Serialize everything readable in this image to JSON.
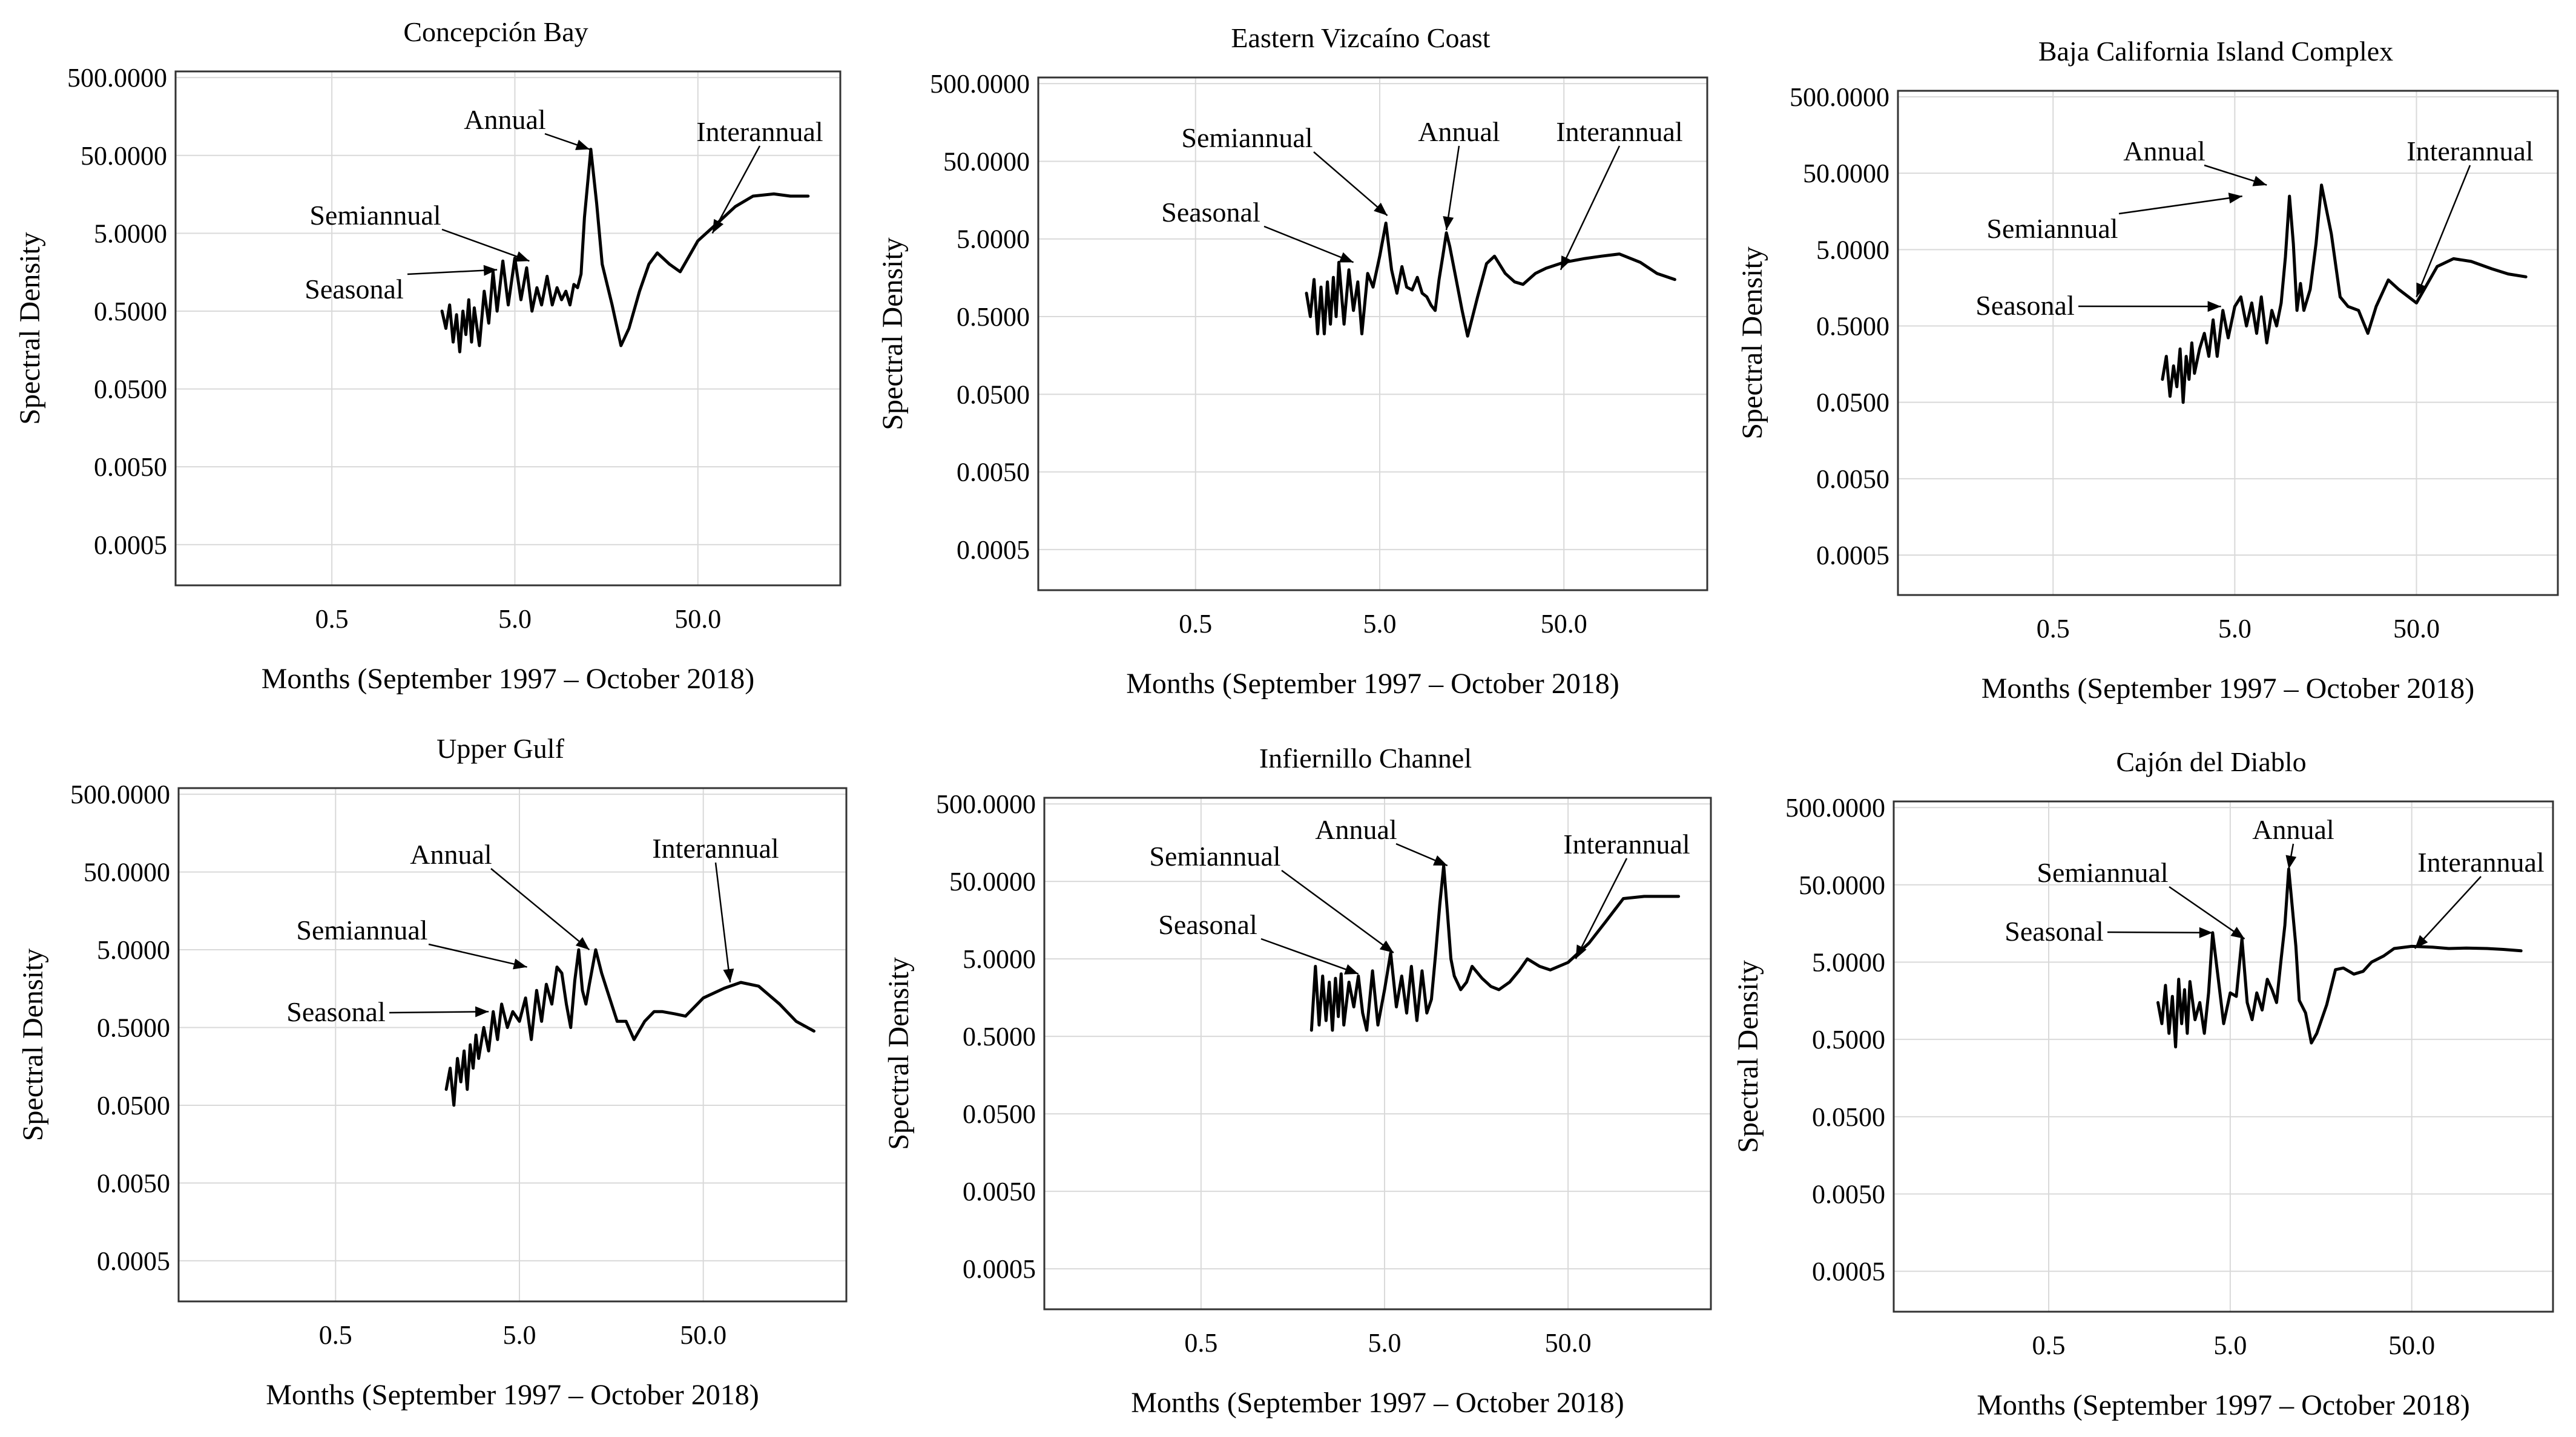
{
  "figure": {
    "background": "#ffffff",
    "line_color": "#000000",
    "grid_color": "#d9d9d9"
  },
  "chart_data": [
    {
      "type": "line",
      "title": "Concepción Bay",
      "xlabel": "Months (September 1997 – October 2018)",
      "ylabel": "Spectral Density",
      "xscale": "log",
      "yscale": "log",
      "xlim": [
        0.07,
        300
      ],
      "ylim": [
        0.00015,
        600
      ],
      "xticks": [
        0.5,
        5.0,
        50.0
      ],
      "xtick_labels": [
        "0.5",
        "5.0",
        "50.0"
      ],
      "yticks": [
        0.0005,
        0.005,
        0.05,
        0.5,
        5,
        50,
        500
      ],
      "ytick_labels": [
        "0.0005",
        "0.0050",
        "0.0500",
        "0.5000",
        "5.0000",
        "50.0000",
        "500.0000"
      ],
      "grid": true,
      "series": [
        {
          "name": "spectral density",
          "x": [
            2.0,
            2.1,
            2.2,
            2.3,
            2.4,
            2.5,
            2.6,
            2.7,
            2.8,
            2.9,
            3.0,
            3.2,
            3.4,
            3.6,
            3.8,
            4.0,
            4.3,
            4.6,
            5.0,
            5.4,
            5.8,
            6.2,
            6.6,
            7.0,
            7.5,
            8.0,
            8.5,
            9.0,
            9.5,
            10.0,
            10.5,
            11.0,
            11.5,
            12.0,
            13.0,
            14.0,
            15.0,
            17.0,
            19.0,
            21.0,
            24.0,
            27.0,
            30.0,
            35.0,
            40.0,
            50.0,
            65.0,
            80.0,
            100.0,
            130.0,
            160.0,
            200.0
          ],
          "y": [
            0.5,
            0.3,
            0.6,
            0.2,
            0.45,
            0.15,
            0.5,
            0.25,
            0.7,
            0.2,
            0.55,
            0.18,
            0.9,
            0.35,
            1.6,
            0.5,
            2.2,
            0.6,
            2.4,
            0.7,
            1.8,
            0.5,
            1.0,
            0.6,
            1.4,
            0.6,
            1.0,
            0.7,
            0.9,
            0.6,
            1.1,
            1.0,
            1.5,
            8.0,
            60.0,
            12.0,
            2.0,
            0.6,
            0.18,
            0.3,
            0.9,
            2.0,
            2.8,
            2.0,
            1.6,
            4.0,
            7.0,
            11.0,
            15.0,
            16.0,
            15.0,
            15.0
          ]
        }
      ],
      "annotations": [
        {
          "text": "Annual",
          "x": 12.8,
          "y": 60
        },
        {
          "text": "Semiannual",
          "x": 6.0,
          "y": 2.2
        },
        {
          "text": "Seasonal",
          "x": 4.0,
          "y": 1.7
        },
        {
          "text": "Interannual",
          "x": 60,
          "y": 5
        }
      ]
    },
    {
      "type": "line",
      "title": "Eastern Vizcaíno Coast",
      "xlabel": "Months (September 1997 – October 2018)",
      "ylabel": "Spectral Density",
      "xscale": "log",
      "yscale": "log",
      "xlim": [
        0.07,
        300
      ],
      "ylim": [
        0.00015,
        600
      ],
      "xticks": [
        0.5,
        5.0,
        50.0
      ],
      "xtick_labels": [
        "0.5",
        "5.0",
        "50.0"
      ],
      "yticks": [
        0.0005,
        0.005,
        0.05,
        0.5,
        5,
        50,
        500
      ],
      "ytick_labels": [
        "0.0005",
        "0.0050",
        "0.0500",
        "0.5000",
        "5.0000",
        "50.0000",
        "500.0000"
      ],
      "grid": true,
      "series": [
        {
          "name": "spectral density",
          "x": [
            2.0,
            2.1,
            2.2,
            2.3,
            2.4,
            2.5,
            2.6,
            2.7,
            2.8,
            2.9,
            3.0,
            3.2,
            3.4,
            3.6,
            3.8,
            4.0,
            4.3,
            4.6,
            5.0,
            5.4,
            5.8,
            6.2,
            6.6,
            7.0,
            7.5,
            8.0,
            8.5,
            9.0,
            9.5,
            10.0,
            10.5,
            11.0,
            11.5,
            12.0,
            13.0,
            14.0,
            15.0,
            17.0,
            19.0,
            21.0,
            24.0,
            27.0,
            30.0,
            35.0,
            40.0,
            50.0,
            65.0,
            80.0,
            100.0,
            130.0,
            160.0,
            200.0
          ],
          "y": [
            1.0,
            0.5,
            1.5,
            0.3,
            1.2,
            0.3,
            1.4,
            0.4,
            1.6,
            0.5,
            2.5,
            0.4,
            2.0,
            0.6,
            1.4,
            0.3,
            1.8,
            1.2,
            3.0,
            8.0,
            2.0,
            1.0,
            2.2,
            1.2,
            1.1,
            1.6,
            1.0,
            0.9,
            0.7,
            0.6,
            1.5,
            3.0,
            6.0,
            4.0,
            1.5,
            0.6,
            0.28,
            0.9,
            2.4,
            3.0,
            1.8,
            1.4,
            1.3,
            1.8,
            2.1,
            2.5,
            2.8,
            3.0,
            3.2,
            2.5,
            1.8,
            1.5
          ]
        }
      ],
      "annotations": [
        {
          "text": "Semiannual",
          "x": 5.5,
          "y": 10
        },
        {
          "text": "Annual",
          "x": 11.5,
          "y": 6.5
        },
        {
          "text": "Seasonal",
          "x": 3.6,
          "y": 2.5
        },
        {
          "text": "Interannual",
          "x": 48,
          "y": 2
        }
      ]
    },
    {
      "type": "line",
      "title": "Baja California Island Complex",
      "xlabel": "Months (September 1997 – October 2018)",
      "ylabel": "Spectral Density",
      "xscale": "log",
      "yscale": "log",
      "xlim": [
        0.07,
        300
      ],
      "ylim": [
        0.00015,
        600
      ],
      "xticks": [
        0.5,
        5.0,
        50.0
      ],
      "xtick_labels": [
        "0.5",
        "5.0",
        "50.0"
      ],
      "yticks": [
        0.0005,
        0.005,
        0.05,
        0.5,
        5,
        50,
        500
      ],
      "ytick_labels": [
        "0.0005",
        "0.0050",
        "0.0500",
        "0.5000",
        "5.0000",
        "50.0000",
        "500.0000"
      ],
      "grid": true,
      "series": [
        {
          "name": "spectral density",
          "x": [
            2.0,
            2.1,
            2.2,
            2.3,
            2.4,
            2.5,
            2.6,
            2.7,
            2.8,
            2.9,
            3.0,
            3.2,
            3.4,
            3.6,
            3.8,
            4.0,
            4.3,
            4.6,
            5.0,
            5.4,
            5.8,
            6.2,
            6.6,
            7.0,
            7.5,
            8.0,
            8.5,
            9.0,
            9.5,
            10.0,
            10.5,
            11.0,
            11.5,
            12.0,
            13.0,
            14.0,
            15.0,
            17.0,
            19.0,
            21.0,
            24.0,
            27.0,
            30.0,
            35.0,
            40.0,
            50.0,
            65.0,
            80.0,
            100.0,
            130.0,
            160.0,
            200.0
          ],
          "y": [
            0.1,
            0.2,
            0.06,
            0.15,
            0.08,
            0.25,
            0.05,
            0.2,
            0.1,
            0.3,
            0.12,
            0.25,
            0.4,
            0.2,
            0.6,
            0.2,
            0.8,
            0.35,
            0.9,
            1.2,
            0.5,
            1.0,
            0.4,
            1.2,
            0.3,
            0.8,
            0.5,
            1.0,
            4.0,
            25.0,
            6.0,
            0.8,
            1.8,
            0.8,
            1.5,
            6.0,
            35.0,
            8.0,
            1.2,
            0.9,
            0.8,
            0.4,
            0.9,
            2.0,
            1.5,
            1.0,
            3.0,
            3.8,
            3.5,
            2.8,
            2.4,
            2.2
          ]
        }
      ],
      "annotations": [
        {
          "text": "Annual",
          "x": 7.5,
          "y": 35
        },
        {
          "text": "Semiannual",
          "x": 5.5,
          "y": 25
        },
        {
          "text": "Seasonal",
          "x": 4.2,
          "y": 0.9
        },
        {
          "text": "Interannual",
          "x": 50,
          "y": 1.2
        }
      ]
    },
    {
      "type": "line",
      "title": "Upper Gulf",
      "xlabel": "Months (September 1997 – October 2018)",
      "ylabel": "Spectral Density",
      "xscale": "log",
      "yscale": "log",
      "xlim": [
        0.07,
        300
      ],
      "ylim": [
        0.00015,
        600
      ],
      "xticks": [
        0.5,
        5.0,
        50.0
      ],
      "xtick_labels": [
        "0.5",
        "5.0",
        "50.0"
      ],
      "yticks": [
        0.0005,
        0.005,
        0.05,
        0.5,
        5,
        50,
        500
      ],
      "ytick_labels": [
        "0.0005",
        "0.0050",
        "0.0500",
        "0.5000",
        "5.0000",
        "50.0000",
        "500.0000"
      ],
      "grid": true,
      "series": [
        {
          "name": "spectral density",
          "x": [
            2.0,
            2.1,
            2.2,
            2.3,
            2.4,
            2.5,
            2.6,
            2.7,
            2.8,
            2.9,
            3.0,
            3.2,
            3.4,
            3.6,
            3.8,
            4.0,
            4.3,
            4.6,
            5.0,
            5.4,
            5.8,
            6.2,
            6.6,
            7.0,
            7.5,
            8.0,
            8.5,
            9.0,
            9.5,
            10.0,
            10.5,
            11.0,
            11.5,
            12.0,
            13.0,
            14.0,
            15.0,
            17.0,
            19.0,
            21.0,
            24.0,
            27.0,
            30.0,
            35.0,
            40.0,
            50.0,
            65.0,
            80.0,
            100.0,
            130.0,
            160.0,
            200.0
          ],
          "y": [
            0.08,
            0.15,
            0.05,
            0.2,
            0.1,
            0.25,
            0.08,
            0.3,
            0.15,
            0.4,
            0.2,
            0.5,
            0.25,
            0.8,
            0.35,
            1.0,
            0.5,
            0.8,
            0.6,
            1.2,
            0.35,
            1.5,
            0.6,
            1.8,
            1.0,
            3.0,
            2.5,
            1.0,
            0.5,
            2.0,
            5.0,
            1.5,
            1.0,
            1.8,
            5.0,
            2.5,
            1.5,
            0.6,
            0.6,
            0.35,
            0.6,
            0.8,
            0.8,
            0.75,
            0.7,
            1.2,
            1.6,
            1.9,
            1.7,
            1.0,
            0.6,
            0.45
          ]
        }
      ],
      "annotations": [
        {
          "text": "Annual",
          "x": 12,
          "y": 5
        },
        {
          "text": "Semiannual",
          "x": 5.5,
          "y": 3
        },
        {
          "text": "Seasonal",
          "x": 3.4,
          "y": 0.8
        },
        {
          "text": "Interannual",
          "x": 70,
          "y": 1.9
        }
      ]
    },
    {
      "type": "line",
      "title": "Infiernillo Channel",
      "xlabel": "Months (September 1997 – October 2018)",
      "ylabel": "Spectral Density",
      "xscale": "log",
      "yscale": "log",
      "xlim": [
        0.07,
        300
      ],
      "ylim": [
        0.00015,
        600
      ],
      "xticks": [
        0.5,
        5.0,
        50.0
      ],
      "xtick_labels": [
        "0.5",
        "5.0",
        "50.0"
      ],
      "yticks": [
        0.0005,
        0.005,
        0.05,
        0.5,
        5,
        50,
        500
      ],
      "ytick_labels": [
        "0.0005",
        "0.0050",
        "0.0500",
        "0.5000",
        "5.0000",
        "50.0000",
        "500.0000"
      ],
      "grid": true,
      "series": [
        {
          "name": "spectral density",
          "x": [
            2.0,
            2.1,
            2.2,
            2.3,
            2.4,
            2.5,
            2.6,
            2.7,
            2.8,
            2.9,
            3.0,
            3.2,
            3.4,
            3.6,
            3.8,
            4.0,
            4.3,
            4.6,
            5.0,
            5.4,
            5.8,
            6.2,
            6.6,
            7.0,
            7.5,
            8.0,
            8.5,
            9.0,
            9.5,
            10.0,
            10.5,
            11.0,
            11.5,
            12.0,
            13.0,
            14.0,
            15.0,
            17.0,
            19.0,
            21.0,
            24.0,
            27.0,
            30.0,
            35.0,
            40.0,
            50.0,
            65.0,
            80.0,
            100.0,
            130.0,
            160.0,
            200.0
          ],
          "y": [
            0.6,
            4.0,
            0.7,
            3.0,
            0.8,
            2.5,
            0.6,
            2.8,
            0.9,
            3.2,
            0.7,
            2.5,
            1.2,
            3.0,
            1.0,
            0.6,
            3.5,
            0.7,
            2.0,
            6.0,
            1.2,
            3.0,
            1.0,
            4.0,
            0.8,
            3.5,
            1.0,
            1.5,
            6.0,
            25.0,
            80.0,
            20.0,
            5.0,
            3.0,
            2.0,
            2.5,
            4.0,
            2.8,
            2.2,
            2.0,
            2.5,
            3.5,
            5.0,
            4.0,
            3.6,
            4.5,
            8.0,
            15.0,
            30.0,
            32.0,
            32.0,
            32.0
          ]
        }
      ],
      "annotations": [
        {
          "text": "Annual",
          "x": 11,
          "y": 80
        },
        {
          "text": "Semiannual",
          "x": 5.6,
          "y": 6
        },
        {
          "text": "Seasonal",
          "x": 3.6,
          "y": 3.2
        },
        {
          "text": "Interannual",
          "x": 55,
          "y": 5
        }
      ]
    },
    {
      "type": "line",
      "title": "Cajón del Diablo",
      "xlabel": "Months (September 1997 – October 2018)",
      "ylabel": "Spectral Density",
      "xscale": "log",
      "yscale": "log",
      "xlim": [
        0.07,
        300
      ],
      "ylim": [
        0.00015,
        600
      ],
      "xticks": [
        0.5,
        5.0,
        50.0
      ],
      "xtick_labels": [
        "0.5",
        "5.0",
        "50.0"
      ],
      "yticks": [
        0.0005,
        0.005,
        0.05,
        0.5,
        5,
        50,
        500
      ],
      "ytick_labels": [
        "0.0005",
        "0.0050",
        "0.0500",
        "0.5000",
        "5.0000",
        "50.0000",
        "500.0000"
      ],
      "grid": true,
      "series": [
        {
          "name": "spectral density",
          "x": [
            2.0,
            2.1,
            2.2,
            2.3,
            2.4,
            2.5,
            2.6,
            2.7,
            2.8,
            2.9,
            3.0,
            3.2,
            3.4,
            3.6,
            3.8,
            4.0,
            4.3,
            4.6,
            5.0,
            5.4,
            5.8,
            6.2,
            6.6,
            7.0,
            7.5,
            8.0,
            8.5,
            9.0,
            9.5,
            10.0,
            10.5,
            11.0,
            11.5,
            12.0,
            13.0,
            14.0,
            15.0,
            17.0,
            19.0,
            21.0,
            24.0,
            27.0,
            30.0,
            35.0,
            40.0,
            50.0,
            65.0,
            80.0,
            100.0,
            130.0,
            160.0,
            200.0
          ],
          "y": [
            1.5,
            0.8,
            2.5,
            0.6,
            1.8,
            0.4,
            3.0,
            0.8,
            2.2,
            0.6,
            2.8,
            0.9,
            1.5,
            0.6,
            2.0,
            12.0,
            3.0,
            0.8,
            2.0,
            1.8,
            10.0,
            1.5,
            0.9,
            2.0,
            1.2,
            3.0,
            2.2,
            1.5,
            5.0,
            15.0,
            80.0,
            25.0,
            8.0,
            1.6,
            1.1,
            0.45,
            0.6,
            1.4,
            4.0,
            4.2,
            3.5,
            3.8,
            5.0,
            6.0,
            7.5,
            8.0,
            7.8,
            7.5,
            7.6,
            7.5,
            7.3,
            7.0
          ]
        }
      ],
      "annotations": [
        {
          "text": "Annual",
          "x": 10.5,
          "y": 80
        },
        {
          "text": "Semiannual",
          "x": 6.0,
          "y": 10
        },
        {
          "text": "Seasonal",
          "x": 4.0,
          "y": 12
        },
        {
          "text": "Interannual",
          "x": 52,
          "y": 7.5
        }
      ]
    }
  ]
}
